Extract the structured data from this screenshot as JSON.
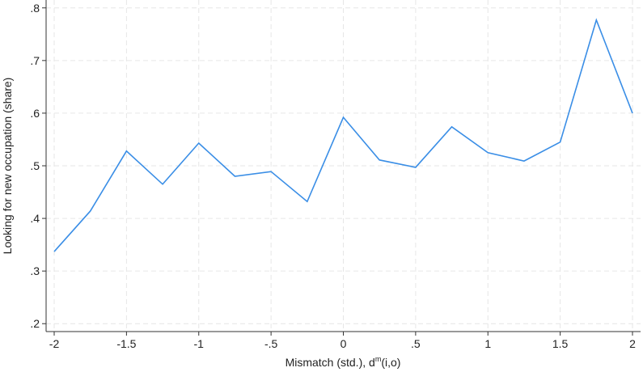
{
  "chart_data": {
    "type": "line",
    "y_label": "Looking for new occupation (share)",
    "x_label_parts": [
      "Mismatch (std.), d",
      "m",
      "(i,o)"
    ],
    "x": [
      -2,
      -1.75,
      -1.5,
      -1.25,
      -1,
      -0.75,
      -0.5,
      -0.25,
      0,
      0.25,
      0.5,
      0.75,
      1,
      1.25,
      1.5,
      1.75,
      2
    ],
    "values": [
      0.337,
      0.414,
      0.528,
      0.465,
      0.543,
      0.48,
      0.489,
      0.432,
      0.592,
      0.511,
      0.497,
      0.574,
      0.525,
      0.509,
      0.545,
      0.777,
      0.6
    ],
    "color": "#3a8ee6",
    "xlim": [
      -2.056,
      2.056
    ],
    "ylim": [
      0.185,
      0.815
    ],
    "xticks": [
      -2,
      -1.5,
      -1,
      {
        "value": -0.5,
        "label": "-.5"
      },
      0,
      {
        "value": 0.5,
        "label": ".5"
      },
      1,
      1.5,
      2
    ],
    "yticks": [
      {
        "value": 0.2,
        "label": ".2"
      },
      {
        "value": 0.3,
        "label": ".3"
      },
      {
        "value": 0.4,
        "label": ".4"
      },
      {
        "value": 0.5,
        "label": ".5"
      },
      {
        "value": 0.6,
        "label": ".6"
      },
      {
        "value": 0.7,
        "label": ".7"
      },
      {
        "value": 0.8,
        "label": ".8"
      }
    ],
    "grid": true
  }
}
